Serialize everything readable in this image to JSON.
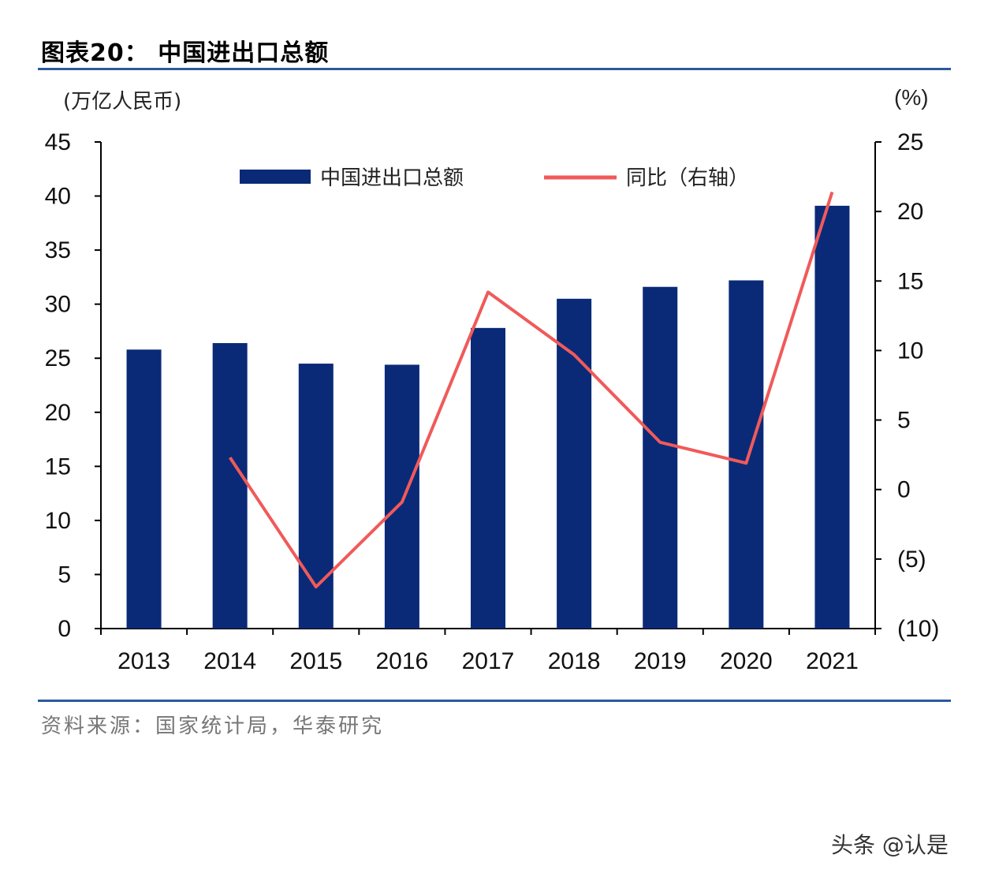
{
  "title": "图表20： 中国进出口总额",
  "source": "资料来源：国家统计局，华泰研究",
  "watermark": "头条 @认是",
  "chart_data": {
    "type": "bar+line",
    "categories": [
      "2013",
      "2014",
      "2015",
      "2016",
      "2017",
      "2018",
      "2019",
      "2020",
      "2021"
    ],
    "series": [
      {
        "name": "中国进出口总额",
        "type": "bar",
        "axis": "left",
        "color": "#0a2a78",
        "values": [
          25.8,
          26.4,
          24.5,
          24.4,
          27.8,
          30.5,
          31.6,
          32.2,
          39.1
        ]
      },
      {
        "name": "同比（右轴）",
        "type": "line",
        "axis": "right",
        "color": "#f05a5a",
        "values": [
          null,
          2.3,
          -7.0,
          -0.9,
          14.2,
          9.7,
          3.4,
          1.9,
          21.4
        ]
      }
    ],
    "ylabel_left": "(万亿人民币)",
    "ylabel_right": "(%)",
    "ylim_left": [
      0,
      45
    ],
    "ylim_right": [
      -10,
      25
    ],
    "yticks_left": [
      "0",
      "5",
      "10",
      "15",
      "20",
      "25",
      "30",
      "35",
      "40",
      "45"
    ],
    "yticks_right": [
      "(10)",
      "(5)",
      "0",
      "5",
      "10",
      "15",
      "20",
      "25"
    ],
    "legend_position": "top",
    "grid": false
  }
}
